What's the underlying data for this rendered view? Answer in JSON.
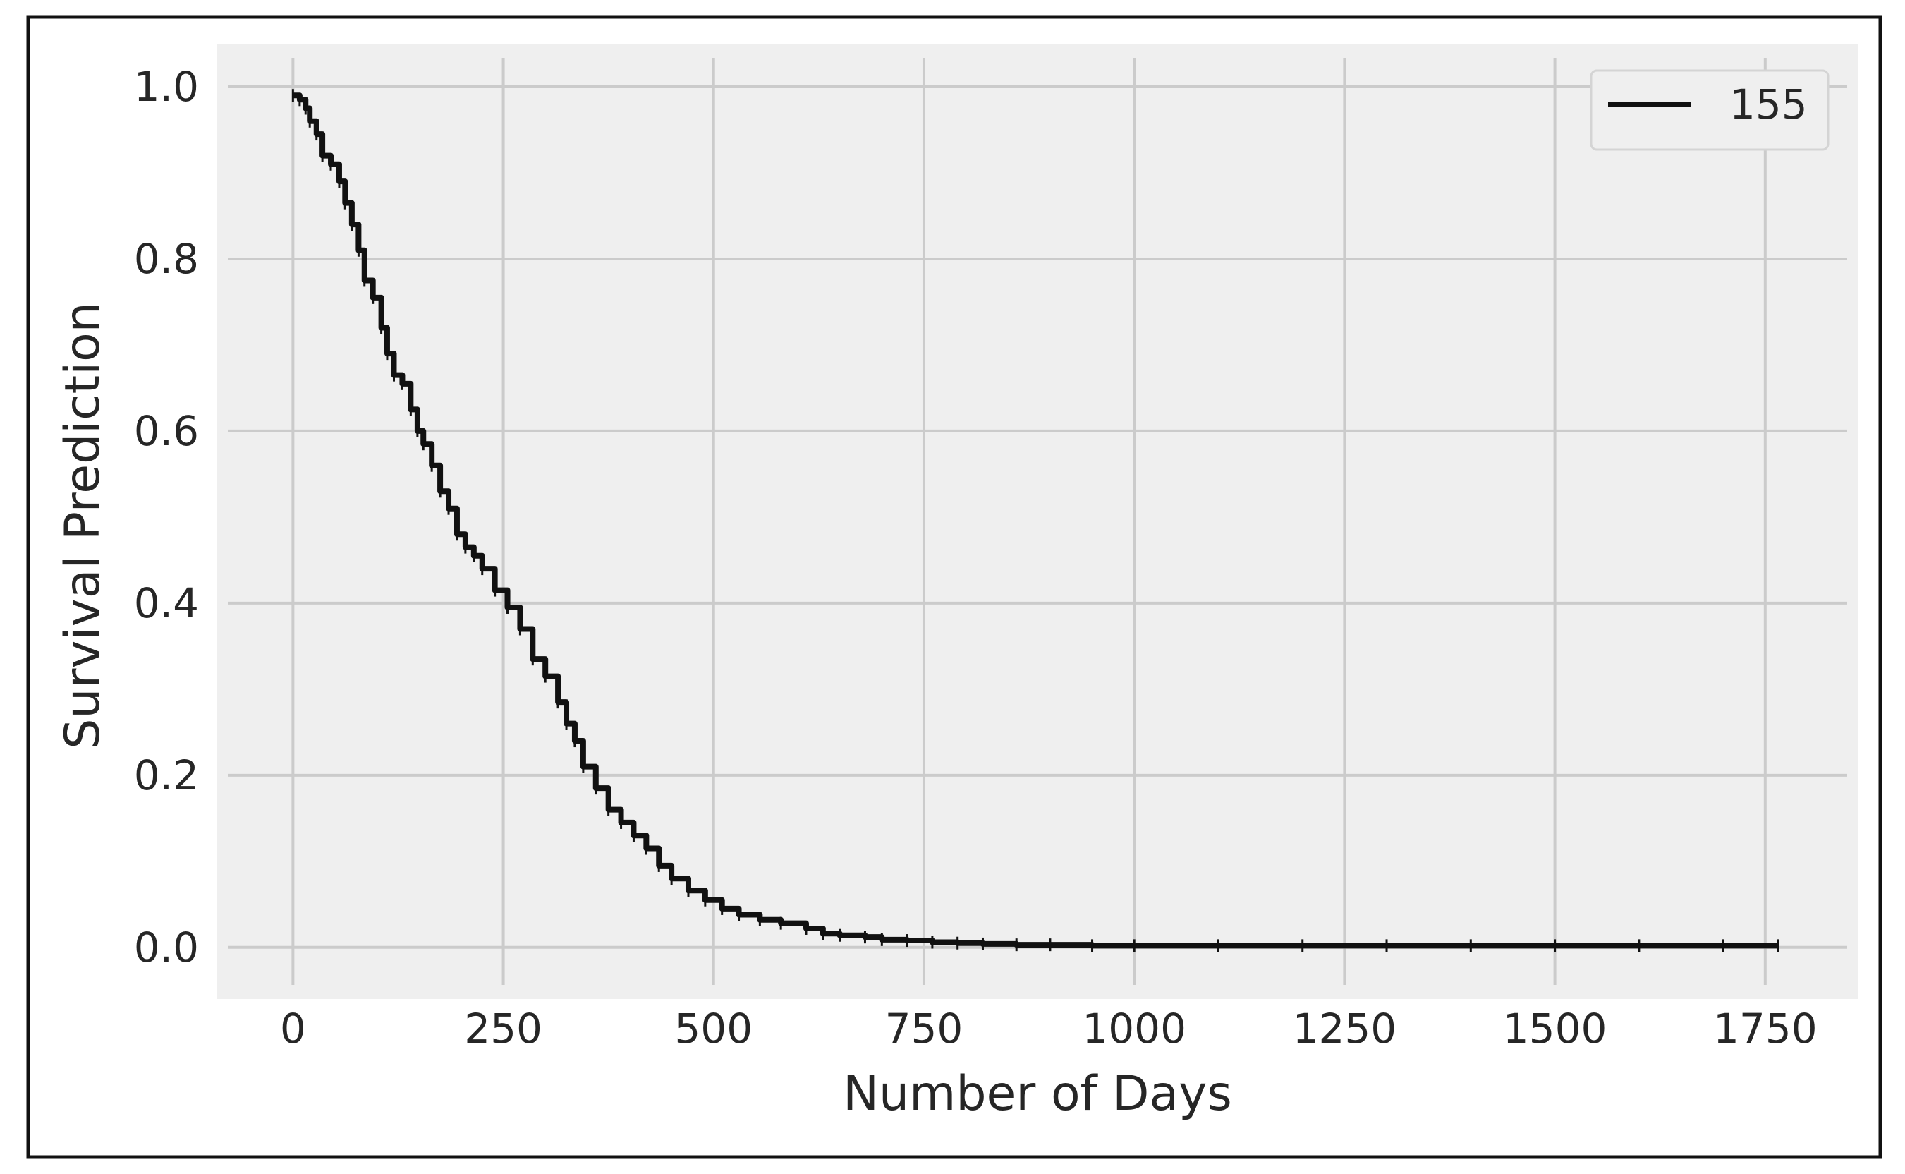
{
  "chart_data": {
    "type": "line",
    "title": "",
    "xlabel": "Number of Days",
    "ylabel": "Survival Prediction",
    "xlim": [
      -90,
      1860
    ],
    "ylim": [
      -0.06,
      1.05
    ],
    "x_ticks": [
      0,
      250,
      500,
      750,
      1000,
      1250,
      1500,
      1750
    ],
    "x_tick_labels": [
      "0",
      "250",
      "500",
      "750",
      "1000",
      "1250",
      "1500",
      "1750"
    ],
    "y_ticks": [
      0.0,
      0.2,
      0.4,
      0.6,
      0.8,
      1.0
    ],
    "y_tick_labels": [
      "0.0",
      "0.2",
      "0.4",
      "0.6",
      "0.8",
      "1.0"
    ],
    "grid": true,
    "legend_position": "top-right",
    "line_color": "#111111",
    "background_color": "#efefef",
    "grid_color": "#cbcbcb",
    "series": [
      {
        "name": "155",
        "drawstyle": "steps-post",
        "x": [
          0,
          8,
          15,
          20,
          28,
          35,
          45,
          55,
          62,
          70,
          78,
          85,
          95,
          105,
          112,
          120,
          130,
          140,
          148,
          155,
          165,
          175,
          185,
          195,
          205,
          215,
          225,
          240,
          255,
          270,
          285,
          300,
          315,
          325,
          335,
          345,
          360,
          375,
          390,
          405,
          420,
          435,
          450,
          470,
          490,
          510,
          530,
          555,
          580,
          610,
          630,
          650,
          680,
          700,
          730,
          760,
          790,
          820,
          860,
          900,
          950,
          1000,
          1100,
          1200,
          1300,
          1400,
          1500,
          1600,
          1700,
          1765
        ],
        "y": [
          0.99,
          0.985,
          0.975,
          0.96,
          0.945,
          0.92,
          0.91,
          0.89,
          0.865,
          0.84,
          0.81,
          0.775,
          0.755,
          0.72,
          0.69,
          0.665,
          0.655,
          0.625,
          0.6,
          0.585,
          0.56,
          0.53,
          0.51,
          0.48,
          0.465,
          0.455,
          0.44,
          0.415,
          0.395,
          0.37,
          0.335,
          0.315,
          0.285,
          0.26,
          0.24,
          0.21,
          0.185,
          0.16,
          0.145,
          0.13,
          0.115,
          0.095,
          0.08,
          0.066,
          0.055,
          0.045,
          0.038,
          0.032,
          0.028,
          0.022,
          0.016,
          0.014,
          0.012,
          0.009,
          0.008,
          0.006,
          0.005,
          0.004,
          0.003,
          0.003,
          0.002,
          0.002,
          0.002,
          0.002,
          0.002,
          0.002,
          0.002,
          0.002,
          0.002,
          0.002
        ]
      }
    ]
  }
}
